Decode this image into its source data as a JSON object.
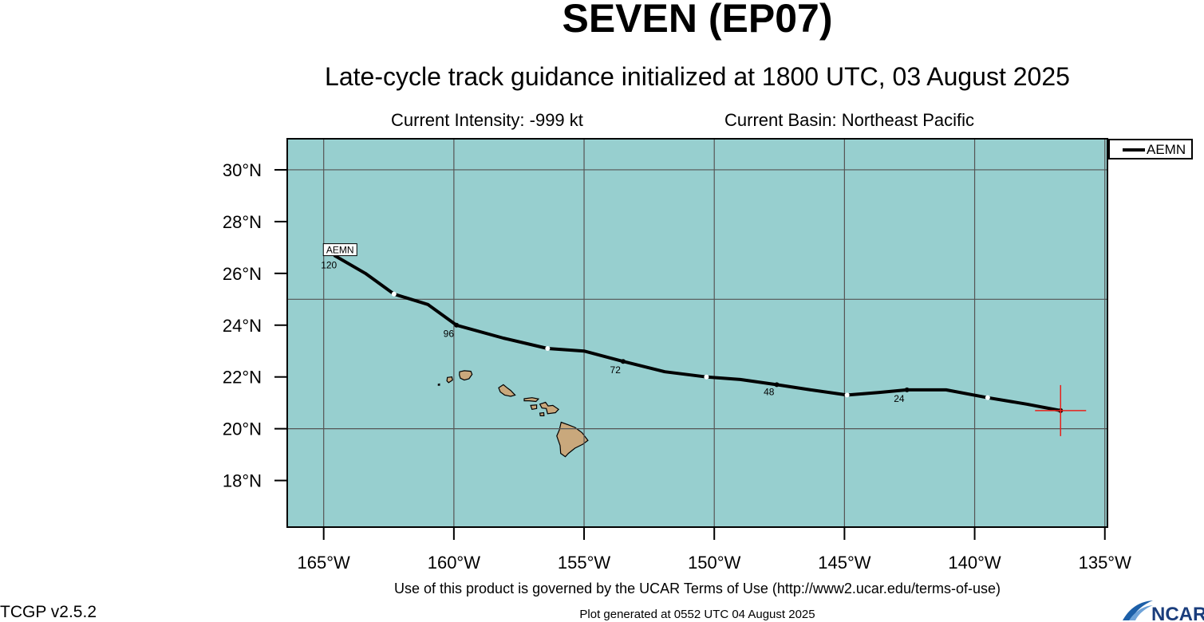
{
  "header": {
    "title": "SEVEN (EP07)",
    "subtitle": "Late-cycle track guidance initialized at 1800 UTC, 03 August 2025",
    "intensity": "Current Intensity: -999 kt",
    "basin": "Current Basin: Northeast Pacific"
  },
  "legend": {
    "model": "AEMN"
  },
  "footer": {
    "terms": "Use of this product is governed by the UCAR Terms of Use (http://www2.ucar.edu/terms-of-use)",
    "generated": "Plot generated at 0552 UTC   04 August 2025",
    "version": "TCGP v2.5.2",
    "logo_text": "NCAR"
  },
  "colors": {
    "ocean": "#97cfcf",
    "land": "#c9a87c",
    "track": "#000000",
    "initial_marker": "#e8201a",
    "grid": "#555555"
  },
  "chart_data": {
    "type": "map-track",
    "projection": "cylindrical",
    "lon_range": [
      -166.4,
      -134.9
    ],
    "lat_range": [
      16.2,
      31.2
    ],
    "lon_ticks": [
      -165,
      -160,
      -155,
      -150,
      -145,
      -140,
      -135
    ],
    "lon_tick_labels": [
      "165°W",
      "160°W",
      "155°W",
      "150°W",
      "145°W",
      "140°W",
      "135°W"
    ],
    "lat_ticks": [
      18,
      20,
      22,
      24,
      26,
      28,
      30
    ],
    "lat_tick_labels": [
      "18°N",
      "20°N",
      "22°N",
      "24°N",
      "26°N",
      "28°N",
      "30°N"
    ],
    "gridlines_lon": [
      -165,
      -160,
      -155,
      -150,
      -145,
      -140,
      -135
    ],
    "gridlines_lat": [
      20,
      25,
      30
    ],
    "initial_position": {
      "lon": -136.7,
      "lat": 20.7
    },
    "series": [
      {
        "name": "AEMN",
        "track": [
          {
            "lon": -136.7,
            "lat": 20.7
          },
          {
            "lon": -138.0,
            "lat": 20.95
          },
          {
            "lon": -139.5,
            "lat": 21.2
          },
          {
            "lon": -141.1,
            "lat": 21.5
          },
          {
            "lon": -142.6,
            "lat": 21.5
          },
          {
            "lon": -143.7,
            "lat": 21.4
          },
          {
            "lon": -144.9,
            "lat": 21.3
          },
          {
            "lon": -146.3,
            "lat": 21.5
          },
          {
            "lon": -147.6,
            "lat": 21.7
          },
          {
            "lon": -149.0,
            "lat": 21.9
          },
          {
            "lon": -150.3,
            "lat": 22.0
          },
          {
            "lon": -151.9,
            "lat": 22.2
          },
          {
            "lon": -153.5,
            "lat": 22.6
          },
          {
            "lon": -155.0,
            "lat": 23.0
          },
          {
            "lon": -156.4,
            "lat": 23.1
          },
          {
            "lon": -158.1,
            "lat": 23.5
          },
          {
            "lon": -159.9,
            "lat": 24.0
          },
          {
            "lon": -161.0,
            "lat": 24.8
          },
          {
            "lon": -162.3,
            "lat": 25.2
          },
          {
            "lon": -163.4,
            "lat": 26.0
          },
          {
            "lon": -164.6,
            "lat": 26.7
          }
        ],
        "markers": [
          {
            "lon": -136.7,
            "lat": 20.7,
            "style": "black"
          },
          {
            "lon": -139.5,
            "lat": 21.2,
            "style": "white"
          },
          {
            "lon": -142.6,
            "lat": 21.5,
            "style": "black"
          },
          {
            "lon": -144.9,
            "lat": 21.3,
            "style": "white"
          },
          {
            "lon": -147.6,
            "lat": 21.7,
            "style": "black"
          },
          {
            "lon": -150.3,
            "lat": 22.0,
            "style": "white"
          },
          {
            "lon": -153.5,
            "lat": 22.6,
            "style": "black"
          },
          {
            "lon": -156.4,
            "lat": 23.1,
            "style": "white"
          },
          {
            "lon": -159.9,
            "lat": 24.0,
            "style": "black"
          },
          {
            "lon": -162.3,
            "lat": 25.2,
            "style": "white"
          }
        ],
        "forecast_hour_labels": [
          {
            "text": "24",
            "lon": -142.9,
            "lat": 21.35
          },
          {
            "text": "48",
            "lon": -147.9,
            "lat": 21.6
          },
          {
            "text": "72",
            "lon": -153.8,
            "lat": 22.45
          },
          {
            "text": "96",
            "lon": -160.2,
            "lat": 23.85
          },
          {
            "text": "120",
            "lon": -164.8,
            "lat": 26.5
          }
        ],
        "end_label": {
          "text": "AEMN",
          "lon": -164.4,
          "lat": 26.9
        }
      }
    ],
    "land": [
      {
        "name": "Kauai",
        "outline": [
          [
            -159.78,
            22.2
          ],
          [
            -159.6,
            22.24
          ],
          [
            -159.35,
            22.22
          ],
          [
            -159.3,
            22.1
          ],
          [
            -159.42,
            21.93
          ],
          [
            -159.6,
            21.88
          ],
          [
            -159.75,
            21.95
          ],
          [
            -159.79,
            22.08
          ]
        ]
      },
      {
        "name": "Niihau",
        "outline": [
          [
            -160.25,
            21.98
          ],
          [
            -160.08,
            22.0
          ],
          [
            -160.05,
            21.88
          ],
          [
            -160.2,
            21.78
          ],
          [
            -160.27,
            21.85
          ]
        ]
      },
      {
        "name": "Lehua",
        "outline": [
          [
            -160.6,
            21.72
          ],
          [
            -160.55,
            21.73
          ],
          [
            -160.55,
            21.68
          ],
          [
            -160.6,
            21.68
          ]
        ]
      },
      {
        "name": "Oahu",
        "outline": [
          [
            -158.28,
            21.58
          ],
          [
            -158.1,
            21.7
          ],
          [
            -157.98,
            21.6
          ],
          [
            -157.82,
            21.48
          ],
          [
            -157.65,
            21.3
          ],
          [
            -157.82,
            21.25
          ],
          [
            -158.05,
            21.3
          ],
          [
            -158.22,
            21.42
          ]
        ]
      },
      {
        "name": "Molokai",
        "outline": [
          [
            -157.3,
            21.16
          ],
          [
            -157.0,
            21.2
          ],
          [
            -156.75,
            21.15
          ],
          [
            -156.85,
            21.05
          ],
          [
            -157.1,
            21.08
          ],
          [
            -157.3,
            21.08
          ]
        ]
      },
      {
        "name": "Lanai",
        "outline": [
          [
            -157.05,
            20.9
          ],
          [
            -156.82,
            20.92
          ],
          [
            -156.82,
            20.78
          ],
          [
            -157.0,
            20.75
          ]
        ]
      },
      {
        "name": "Maui",
        "outline": [
          [
            -156.7,
            20.95
          ],
          [
            -156.48,
            21.02
          ],
          [
            -156.38,
            20.88
          ],
          [
            -156.2,
            20.9
          ],
          [
            -155.98,
            20.75
          ],
          [
            -156.1,
            20.62
          ],
          [
            -156.4,
            20.58
          ],
          [
            -156.45,
            20.78
          ],
          [
            -156.62,
            20.8
          ]
        ]
      },
      {
        "name": "Kahoolawe",
        "outline": [
          [
            -156.7,
            20.6
          ],
          [
            -156.55,
            20.62
          ],
          [
            -156.54,
            20.5
          ],
          [
            -156.68,
            20.5
          ]
        ]
      },
      {
        "name": "Hawaii",
        "outline": [
          [
            -155.88,
            20.25
          ],
          [
            -155.6,
            20.15
          ],
          [
            -155.35,
            20.05
          ],
          [
            -155.08,
            19.85
          ],
          [
            -154.85,
            19.55
          ],
          [
            -155.05,
            19.4
          ],
          [
            -155.35,
            19.25
          ],
          [
            -155.6,
            19.05
          ],
          [
            -155.72,
            18.92
          ],
          [
            -155.9,
            19.05
          ],
          [
            -155.92,
            19.35
          ],
          [
            -156.05,
            19.72
          ],
          [
            -155.95,
            19.95
          ]
        ]
      }
    ]
  }
}
